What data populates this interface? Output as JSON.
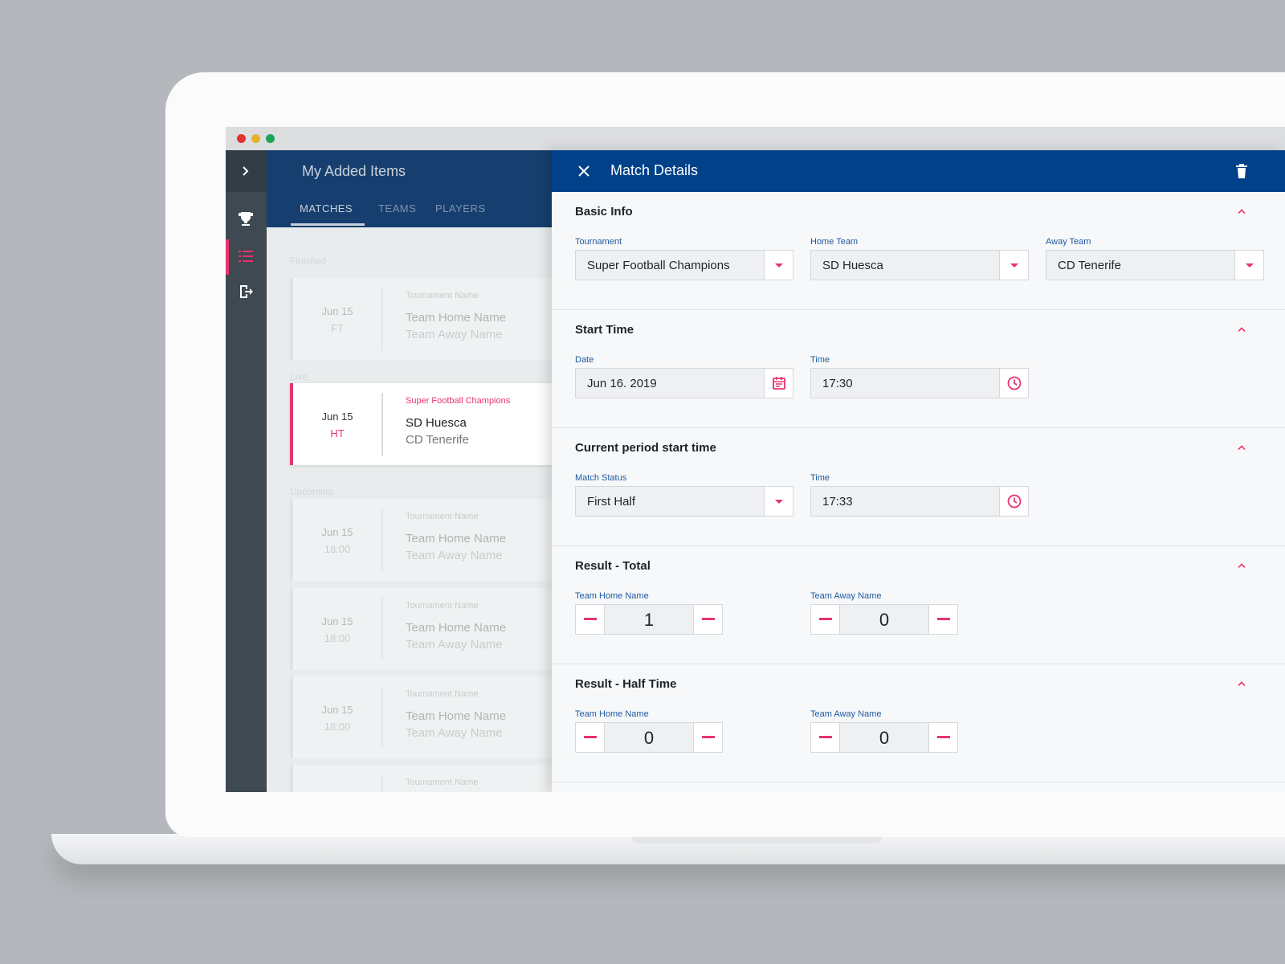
{
  "list": {
    "title": "My Added Items",
    "tabs": [
      "MATCHES",
      "TEAMS",
      "PLAYERS"
    ],
    "sections": [
      {
        "label": "Finished",
        "matches": [
          {
            "date": "Jun 15",
            "status": "FT",
            "tournament": "Tournament Name",
            "home": "Team Home Name",
            "away": "Team Away Name"
          }
        ]
      },
      {
        "label": "Live",
        "matches": [
          {
            "date": "Jun 15",
            "status": "HT",
            "tournament": "Super Football Champions",
            "home": "SD Huesca",
            "away": "CD Tenerife"
          }
        ]
      },
      {
        "label": "Upcoming",
        "matches": [
          {
            "date": "Jun 15",
            "status": "18:00",
            "tournament": "Tournament Name",
            "home": "Team Home Name",
            "away": "Team Away Name"
          },
          {
            "date": "Jun 15",
            "status": "18:00",
            "tournament": "Tournament Name",
            "home": "Team Home Name",
            "away": "Team Away Name"
          },
          {
            "date": "Jun 15",
            "status": "18:00",
            "tournament": "Tournament Name",
            "home": "Team Home Name",
            "away": "Team Away Name"
          },
          {
            "tournament": "Tournament Name"
          }
        ]
      }
    ]
  },
  "details": {
    "title": "Match Details",
    "sections": [
      {
        "title": "Basic Info",
        "fields": [
          {
            "label": "Tournament",
            "value": "Super Football Champions"
          },
          {
            "label": "Home Team",
            "value": "SD Huesca"
          },
          {
            "label": "Away Team",
            "value": "CD Tenerife"
          }
        ]
      },
      {
        "title": "Start Time",
        "fields": [
          {
            "label": "Date",
            "value": "Jun 16. 2019"
          },
          {
            "label": "Time",
            "value": "17:30"
          }
        ]
      },
      {
        "title": "Current period start time",
        "fields": [
          {
            "label": "Match Status",
            "value": "First Half"
          },
          {
            "label": "Time",
            "value": "17:33"
          }
        ]
      },
      {
        "title": "Result - Total",
        "fields": [
          {
            "label": "Team Home Name",
            "value": 1
          },
          {
            "label": "Team Away Name",
            "value": 0
          }
        ]
      },
      {
        "title": "Result - Half Time",
        "fields": [
          {
            "label": "Team Home Name",
            "value": 0
          },
          {
            "label": "Team Away Name",
            "value": 0
          }
        ]
      }
    ]
  }
}
